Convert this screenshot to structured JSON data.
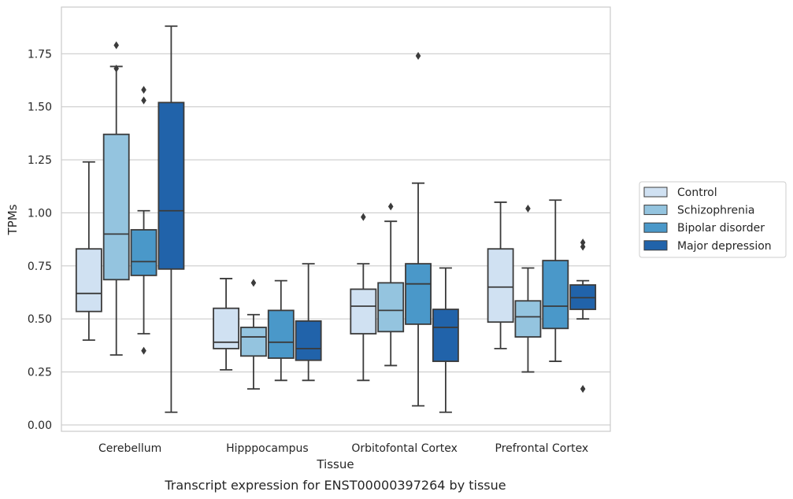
{
  "caption": "Transcript expression for ENST00000397264 by tissue",
  "chart_data": {
    "type": "boxplot",
    "xlabel": "Tissue",
    "ylabel": "TPMs",
    "ylim": [
      -0.03,
      1.97
    ],
    "yticks": [
      "0.00",
      "0.25",
      "0.50",
      "0.75",
      "1.00",
      "1.25",
      "1.50",
      "1.75"
    ],
    "grid": "horizontal",
    "legend_position": "right",
    "categories": [
      "Cerebellum",
      "Hipppocampus",
      "Orbitofontal Cortex",
      "Prefrontal Cortex"
    ],
    "series": [
      {
        "name": "Control",
        "color": "#d0e1f2",
        "boxes": [
          {
            "whisker_low": 0.4,
            "q1": 0.535,
            "median": 0.62,
            "q3": 0.83,
            "whisker_high": 1.24,
            "outliers": []
          },
          {
            "whisker_low": 0.26,
            "q1": 0.36,
            "median": 0.39,
            "q3": 0.55,
            "whisker_high": 0.69,
            "outliers": []
          },
          {
            "whisker_low": 0.21,
            "q1": 0.43,
            "median": 0.56,
            "q3": 0.64,
            "whisker_high": 0.76,
            "outliers": [
              0.98
            ]
          },
          {
            "whisker_low": 0.36,
            "q1": 0.485,
            "median": 0.65,
            "q3": 0.83,
            "whisker_high": 1.05,
            "outliers": []
          }
        ]
      },
      {
        "name": "Schizophrenia",
        "color": "#94c4df",
        "boxes": [
          {
            "whisker_low": 0.33,
            "q1": 0.685,
            "median": 0.9,
            "q3": 1.37,
            "whisker_high": 1.69,
            "outliers": [
              1.79,
              1.68
            ]
          },
          {
            "whisker_low": 0.17,
            "q1": 0.325,
            "median": 0.415,
            "q3": 0.46,
            "whisker_high": 0.52,
            "outliers": [
              0.67
            ]
          },
          {
            "whisker_low": 0.28,
            "q1": 0.44,
            "median": 0.54,
            "q3": 0.67,
            "whisker_high": 0.96,
            "outliers": [
              1.03
            ]
          },
          {
            "whisker_low": 0.25,
            "q1": 0.415,
            "median": 0.51,
            "q3": 0.585,
            "whisker_high": 0.74,
            "outliers": [
              1.02
            ]
          }
        ]
      },
      {
        "name": "Bipolar disorder",
        "color": "#4a98c9",
        "boxes": [
          {
            "whisker_low": 0.43,
            "q1": 0.705,
            "median": 0.77,
            "q3": 0.92,
            "whisker_high": 1.01,
            "outliers": [
              1.58,
              1.53,
              0.35
            ]
          },
          {
            "whisker_low": 0.21,
            "q1": 0.315,
            "median": 0.39,
            "q3": 0.54,
            "whisker_high": 0.68,
            "outliers": []
          },
          {
            "whisker_low": 0.09,
            "q1": 0.475,
            "median": 0.665,
            "q3": 0.76,
            "whisker_high": 1.14,
            "outliers": [
              1.74
            ]
          },
          {
            "whisker_low": 0.3,
            "q1": 0.455,
            "median": 0.56,
            "q3": 0.775,
            "whisker_high": 1.06,
            "outliers": []
          }
        ]
      },
      {
        "name": "Major depression",
        "color": "#2163aa",
        "boxes": [
          {
            "whisker_low": 0.06,
            "q1": 0.735,
            "median": 1.01,
            "q3": 1.52,
            "whisker_high": 1.88,
            "outliers": []
          },
          {
            "whisker_low": 0.21,
            "q1": 0.305,
            "median": 0.36,
            "q3": 0.49,
            "whisker_high": 0.76,
            "outliers": []
          },
          {
            "whisker_low": 0.06,
            "q1": 0.3,
            "median": 0.46,
            "q3": 0.545,
            "whisker_high": 0.74,
            "outliers": []
          },
          {
            "whisker_low": 0.5,
            "q1": 0.545,
            "median": 0.6,
            "q3": 0.66,
            "whisker_high": 0.68,
            "outliers": [
              0.86,
              0.84,
              0.17
            ]
          }
        ]
      }
    ]
  }
}
